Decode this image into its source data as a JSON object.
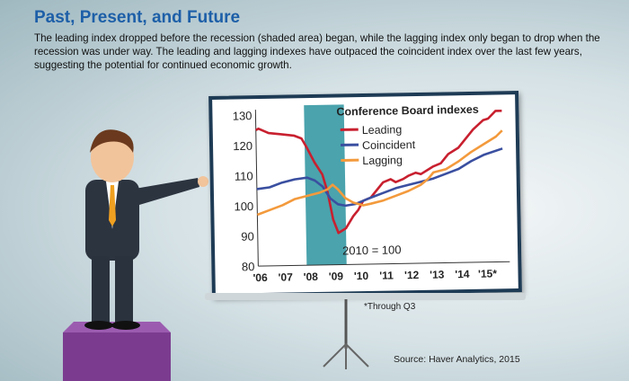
{
  "title": "Past, Present, and Future",
  "subtitle": "The leading index dropped before the recession (shaded area) began, while the lagging index only began to drop when the recession was under way. The leading and lagging indexes have outpaced the coincident index over the last few years, suggesting the potential for continued economic growth.",
  "footnote": "*Through Q3",
  "source": "Source: Haver Analytics, 2015",
  "chart_data": {
    "type": "line",
    "title": "Conference Board indexes",
    "annotation": "2010 = 100",
    "xlim": [
      2006,
      2015.75
    ],
    "ylim": [
      80,
      130
    ],
    "yticks": [
      80,
      90,
      100,
      110,
      120,
      130
    ],
    "xtick_labels": [
      "'06",
      "'07",
      "'08",
      "'09",
      "'10",
      "'11",
      "'12",
      "'13",
      "'14",
      "'15*"
    ],
    "recession": [
      2007.92,
      2009.5
    ],
    "recession_color": "#4aa3ad",
    "legend": "top-right",
    "series": [
      {
        "name": "Leading",
        "color": "#c8202f",
        "points": [
          [
            2006,
            125
          ],
          [
            2006.1,
            125.5
          ],
          [
            2006.5,
            124
          ],
          [
            2007,
            123.5
          ],
          [
            2007.5,
            123
          ],
          [
            2007.8,
            122
          ],
          [
            2008,
            119
          ],
          [
            2008.3,
            114
          ],
          [
            2008.6,
            110
          ],
          [
            2008.8,
            104
          ],
          [
            2009,
            95
          ],
          [
            2009.2,
            90.5
          ],
          [
            2009.5,
            92
          ],
          [
            2009.8,
            96
          ],
          [
            2010,
            98
          ],
          [
            2010.2,
            101
          ],
          [
            2010.5,
            102
          ],
          [
            2010.8,
            105
          ],
          [
            2011,
            107
          ],
          [
            2011.3,
            108
          ],
          [
            2011.5,
            107
          ],
          [
            2011.8,
            108
          ],
          [
            2012,
            109
          ],
          [
            2012.3,
            110
          ],
          [
            2012.5,
            109.5
          ],
          [
            2012.8,
            111
          ],
          [
            2013,
            112
          ],
          [
            2013.3,
            113
          ],
          [
            2013.6,
            116
          ],
          [
            2014,
            118
          ],
          [
            2014.3,
            121
          ],
          [
            2014.6,
            124
          ],
          [
            2015,
            127
          ],
          [
            2015.2,
            127.5
          ],
          [
            2015.5,
            130
          ],
          [
            2015.75,
            130
          ]
        ]
      },
      {
        "name": "Coincident",
        "color": "#3a4fa0",
        "points": [
          [
            2006,
            105.5
          ],
          [
            2006.5,
            106
          ],
          [
            2007,
            107.5
          ],
          [
            2007.5,
            108.5
          ],
          [
            2008,
            109
          ],
          [
            2008.3,
            108
          ],
          [
            2008.6,
            106
          ],
          [
            2008.9,
            102
          ],
          [
            2009.2,
            100
          ],
          [
            2009.5,
            99.5
          ],
          [
            2009.9,
            100
          ],
          [
            2010.2,
            101
          ],
          [
            2010.5,
            102
          ],
          [
            2011,
            103.5
          ],
          [
            2011.5,
            105
          ],
          [
            2012,
            106
          ],
          [
            2012.5,
            107
          ],
          [
            2013,
            108
          ],
          [
            2013.5,
            109.5
          ],
          [
            2014,
            111
          ],
          [
            2014.5,
            113.5
          ],
          [
            2015,
            115.5
          ],
          [
            2015.75,
            117.5
          ]
        ]
      },
      {
        "name": "Lagging",
        "color": "#f39a3c",
        "points": [
          [
            2006,
            97
          ],
          [
            2006.5,
            98.5
          ],
          [
            2007,
            100
          ],
          [
            2007.5,
            102
          ],
          [
            2008,
            103
          ],
          [
            2008.5,
            104
          ],
          [
            2008.8,
            105
          ],
          [
            2009,
            106.5
          ],
          [
            2009.2,
            105
          ],
          [
            2009.5,
            102
          ],
          [
            2009.8,
            100.5
          ],
          [
            2010.2,
            99.5
          ],
          [
            2010.5,
            100
          ],
          [
            2011,
            101
          ],
          [
            2011.5,
            102.5
          ],
          [
            2012,
            104
          ],
          [
            2012.5,
            106
          ],
          [
            2012.8,
            108
          ],
          [
            2013,
            110
          ],
          [
            2013.5,
            111
          ],
          [
            2014,
            113.5
          ],
          [
            2014.5,
            116.5
          ],
          [
            2015,
            119
          ],
          [
            2015.5,
            121.5
          ],
          [
            2015.75,
            123.5
          ]
        ]
      }
    ]
  }
}
